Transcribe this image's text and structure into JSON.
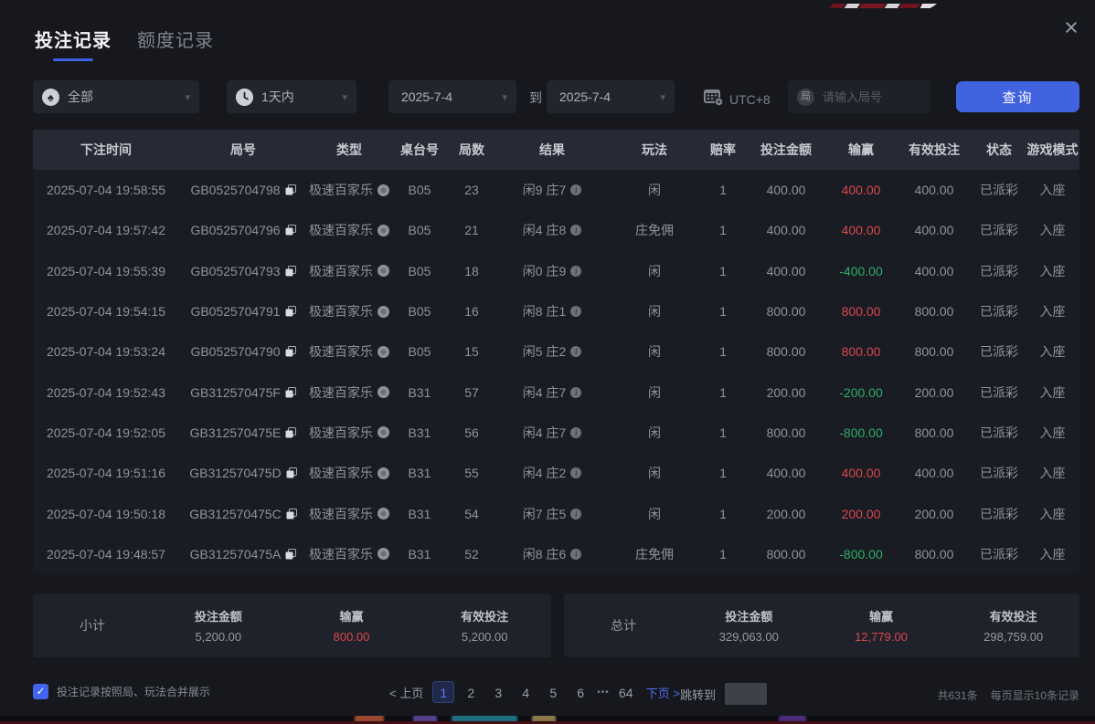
{
  "icons": {
    "close": "×",
    "chevron_down": "▾",
    "spade": "♠",
    "round_badge": "局",
    "check": "✓",
    "info": "i",
    "ellipsis": "•••"
  },
  "header": {
    "tabs": [
      {
        "label": "投注记录",
        "active": true
      },
      {
        "label": "额度记录",
        "active": false
      }
    ]
  },
  "filters": {
    "game_select": {
      "value": "全部"
    },
    "time_select": {
      "value": "1天内"
    },
    "date_from": {
      "value": "2025-7-4"
    },
    "to_label": "到",
    "date_to": {
      "value": "2025-7-4"
    },
    "timezone_label": "UTC+8",
    "round_input": {
      "placeholder": "请输入局号"
    },
    "query_button_label": "查询"
  },
  "table": {
    "headers": [
      "下注时间",
      "局号",
      "类型",
      "桌台号",
      "局数",
      "结果",
      "玩法",
      "赔率",
      "投注金额",
      "输赢",
      "有效投注",
      "状态",
      "游戏模式"
    ],
    "rows": [
      {
        "time": "2025-07-04 19:58:55",
        "round_id": "GB0525704798",
        "game_type": "极速百家乐",
        "table_no": "B05",
        "round_no": "23",
        "result": "闲9 庄7",
        "play": "闲",
        "odds": "1",
        "bet_amount": "400.00",
        "win_loss": "400.00",
        "win_loss_color": "red",
        "valid_bet": "400.00",
        "status": "已派彩",
        "mode": "入座"
      },
      {
        "time": "2025-07-04 19:57:42",
        "round_id": "GB0525704796",
        "game_type": "极速百家乐",
        "table_no": "B05",
        "round_no": "21",
        "result": "闲4 庄8",
        "play": "庄免佣",
        "odds": "1",
        "bet_amount": "400.00",
        "win_loss": "400.00",
        "win_loss_color": "red",
        "valid_bet": "400.00",
        "status": "已派彩",
        "mode": "入座"
      },
      {
        "time": "2025-07-04 19:55:39",
        "round_id": "GB0525704793",
        "game_type": "极速百家乐",
        "table_no": "B05",
        "round_no": "18",
        "result": "闲0 庄9",
        "play": "闲",
        "odds": "1",
        "bet_amount": "400.00",
        "win_loss": "-400.00",
        "win_loss_color": "green",
        "valid_bet": "400.00",
        "status": "已派彩",
        "mode": "入座"
      },
      {
        "time": "2025-07-04 19:54:15",
        "round_id": "GB0525704791",
        "game_type": "极速百家乐",
        "table_no": "B05",
        "round_no": "16",
        "result": "闲8 庄1",
        "play": "闲",
        "odds": "1",
        "bet_amount": "800.00",
        "win_loss": "800.00",
        "win_loss_color": "red",
        "valid_bet": "800.00",
        "status": "已派彩",
        "mode": "入座"
      },
      {
        "time": "2025-07-04 19:53:24",
        "round_id": "GB0525704790",
        "game_type": "极速百家乐",
        "table_no": "B05",
        "round_no": "15",
        "result": "闲5 庄2",
        "play": "闲",
        "odds": "1",
        "bet_amount": "800.00",
        "win_loss": "800.00",
        "win_loss_color": "red",
        "valid_bet": "800.00",
        "status": "已派彩",
        "mode": "入座"
      },
      {
        "time": "2025-07-04 19:52:43",
        "round_id": "GB312570475F",
        "game_type": "极速百家乐",
        "table_no": "B31",
        "round_no": "57",
        "result": "闲4 庄7",
        "play": "闲",
        "odds": "1",
        "bet_amount": "200.00",
        "win_loss": "-200.00",
        "win_loss_color": "green",
        "valid_bet": "200.00",
        "status": "已派彩",
        "mode": "入座"
      },
      {
        "time": "2025-07-04 19:52:05",
        "round_id": "GB312570475E",
        "game_type": "极速百家乐",
        "table_no": "B31",
        "round_no": "56",
        "result": "闲4 庄7",
        "play": "闲",
        "odds": "1",
        "bet_amount": "800.00",
        "win_loss": "-800.00",
        "win_loss_color": "green",
        "valid_bet": "800.00",
        "status": "已派彩",
        "mode": "入座"
      },
      {
        "time": "2025-07-04 19:51:16",
        "round_id": "GB312570475D",
        "game_type": "极速百家乐",
        "table_no": "B31",
        "round_no": "55",
        "result": "闲4 庄2",
        "play": "闲",
        "odds": "1",
        "bet_amount": "400.00",
        "win_loss": "400.00",
        "win_loss_color": "red",
        "valid_bet": "400.00",
        "status": "已派彩",
        "mode": "入座"
      },
      {
        "time": "2025-07-04 19:50:18",
        "round_id": "GB312570475C",
        "game_type": "极速百家乐",
        "table_no": "B31",
        "round_no": "54",
        "result": "闲7 庄5",
        "play": "闲",
        "odds": "1",
        "bet_amount": "200.00",
        "win_loss": "200.00",
        "win_loss_color": "red",
        "valid_bet": "200.00",
        "status": "已派彩",
        "mode": "入座"
      },
      {
        "time": "2025-07-04 19:48:57",
        "round_id": "GB312570475A",
        "game_type": "极速百家乐",
        "table_no": "B31",
        "round_no": "52",
        "result": "闲8 庄6",
        "play": "庄免佣",
        "odds": "1",
        "bet_amount": "800.00",
        "win_loss": "-800.00",
        "win_loss_color": "green",
        "valid_bet": "800.00",
        "status": "已派彩",
        "mode": "入座"
      }
    ]
  },
  "summary": {
    "subtotal": {
      "label": "小计",
      "bet_label": "投注金额",
      "bet": "5,200.00",
      "winloss_label": "输赢",
      "winloss": "800.00",
      "valid_label": "有效投注",
      "valid": "5,200.00"
    },
    "total": {
      "label": "总计",
      "bet_label": "投注金额",
      "bet": "329,063.00",
      "winloss_label": "输赢",
      "winloss": "12,779.00",
      "valid_label": "有效投注",
      "valid": "298,759.00"
    }
  },
  "footer": {
    "merge_option": {
      "checked": true,
      "label": "投注记录按照局、玩法合并展示"
    },
    "pagination": {
      "prev_label": "< 上页",
      "pages": [
        "1",
        "2",
        "3",
        "4",
        "5",
        "6"
      ],
      "active_page": "1",
      "last_page": "64",
      "next_label": "下页 >",
      "jump_label": "跳转到",
      "jump_value": ""
    },
    "total_count": "共631条",
    "per_page": "每页显示10条记录"
  },
  "colors": {
    "accent": "#4263e0",
    "win_red": "#d9484d",
    "loss_green": "#2fae68"
  }
}
